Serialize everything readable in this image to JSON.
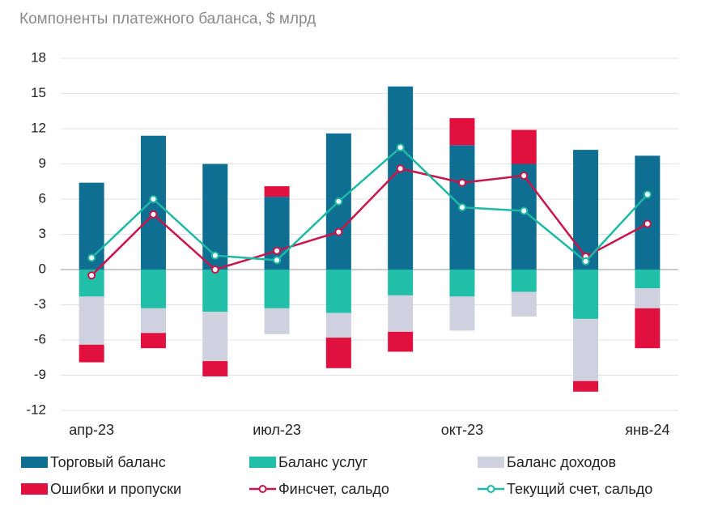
{
  "chart_data": {
    "type": "bar",
    "stacked": true,
    "title": "Компоненты платежного баланса, $ млрд",
    "categories": [
      "апр-23",
      null,
      null,
      "июл-23",
      null,
      null,
      "окт-23",
      null,
      null,
      "янв-24"
    ],
    "ylim": [
      -12,
      18
    ],
    "yticks": [
      -12,
      -9,
      -6,
      -3,
      0,
      3,
      6,
      9,
      12,
      15,
      18
    ],
    "grid": true,
    "series": [
      {
        "name": "Торговый баланс",
        "type": "bar",
        "color": "#0f6f92",
        "values": [
          7.4,
          11.4,
          9.0,
          6.2,
          11.6,
          15.6,
          10.6,
          9.0,
          10.2,
          9.7
        ]
      },
      {
        "name": "Баланс услуг",
        "type": "bar",
        "color": "#21bfa8",
        "values": [
          -2.3,
          -3.3,
          -3.6,
          -3.3,
          -3.7,
          -2.2,
          -2.3,
          -1.9,
          -4.2,
          -1.6
        ]
      },
      {
        "name": "Баланс доходов",
        "type": "bar",
        "color": "#cfd2de",
        "values": [
          -4.1,
          -2.1,
          -4.2,
          -2.2,
          -2.1,
          -3.1,
          -2.9,
          -2.1,
          -5.3,
          -1.7
        ]
      },
      {
        "name": "Ошибки и пропуски",
        "type": "bar",
        "color": "#e0103f",
        "values": [
          -1.5,
          -1.3,
          -1.3,
          0.9,
          -2.6,
          -1.7,
          2.3,
          2.9,
          -0.9,
          -3.4
        ]
      },
      {
        "name": "Финсчет, сальдо",
        "type": "line",
        "color": "#c8154a",
        "values": [
          -0.5,
          4.7,
          0.0,
          1.6,
          3.2,
          8.6,
          7.4,
          8.0,
          1.1,
          3.9
        ]
      },
      {
        "name": "Текущий счет, сальдо",
        "type": "line",
        "color": "#1fb8a5",
        "values": [
          1.0,
          6.0,
          1.2,
          0.8,
          5.8,
          10.4,
          5.3,
          5.0,
          0.7,
          6.4
        ]
      }
    ]
  }
}
